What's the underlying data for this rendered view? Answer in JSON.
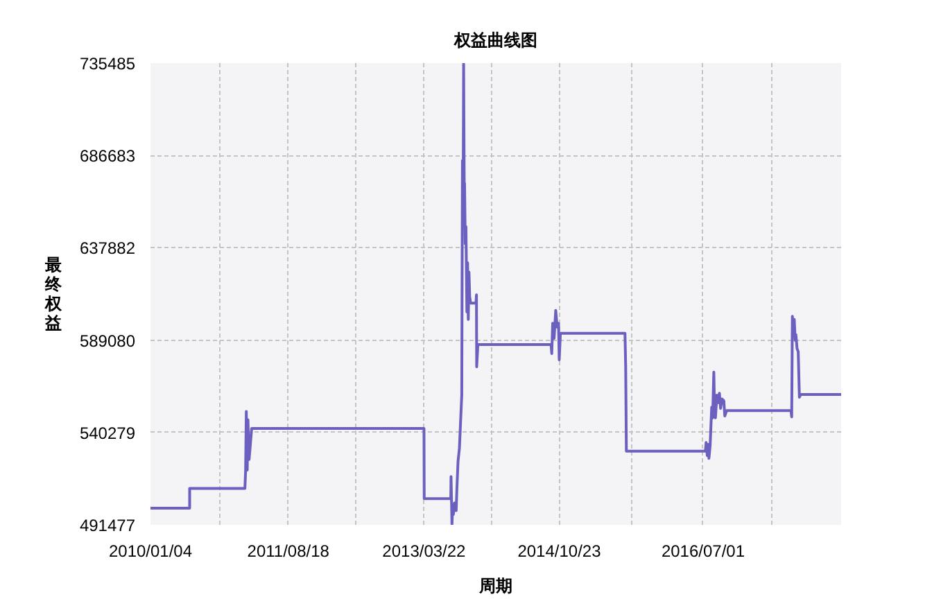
{
  "chart_data": {
    "type": "line",
    "title": "权益曲线图",
    "xlabel": "周期",
    "ylabel": "最终权益",
    "x": [
      "2010-01-04",
      "2010-06-21",
      "2010-06-21",
      "2011-02-13",
      "2011-02-16",
      "2011-02-19",
      "2011-02-23",
      "2011-02-26",
      "2011-03-03",
      "2011-03-14",
      "2013-03-22",
      "2013-03-23",
      "2013-07-15",
      "2013-07-16",
      "2013-07-19",
      "2013-07-20",
      "2013-07-23",
      "2013-07-26",
      "2013-07-31",
      "2013-08-07",
      "2013-08-10",
      "2013-08-15",
      "2013-08-21",
      "2013-08-27",
      "2013-08-31",
      "2013-09-03",
      "2013-09-06",
      "2013-09-08",
      "2013-09-11",
      "2013-09-12",
      "2013-09-15",
      "2013-09-18",
      "2013-09-22",
      "2013-09-25",
      "2013-09-28",
      "2013-10-01",
      "2013-10-04",
      "2013-10-08",
      "2013-10-31",
      "2013-11-02",
      "2013-11-03",
      "2013-11-08",
      "2014-09-18",
      "2014-09-21",
      "2014-09-25",
      "2014-10-01",
      "2014-10-08",
      "2014-10-14",
      "2014-10-20",
      "2014-10-23",
      "2014-10-28",
      "2015-08-01",
      "2015-08-04",
      "2015-08-07",
      "2016-07-11",
      "2016-07-14",
      "2016-07-19",
      "2016-07-23",
      "2016-07-26",
      "2016-07-31",
      "2016-08-07",
      "2016-08-11",
      "2016-08-16",
      "2016-08-19",
      "2016-08-23",
      "2016-08-29",
      "2016-09-03",
      "2016-09-09",
      "2016-09-14",
      "2016-09-20",
      "2016-09-28",
      "2016-10-02",
      "2016-10-10",
      "2017-07-13",
      "2017-07-16",
      "2017-07-19",
      "2017-07-22",
      "2017-07-27",
      "2017-07-31",
      "2017-08-03",
      "2017-08-08",
      "2017-08-13",
      "2017-08-18",
      "2017-08-24",
      "2018-02-13"
    ],
    "series": [
      {
        "color": "#6b60c0",
        "values": [
          500300,
          500300,
          510700,
          510700,
          520000,
          551400,
          520400,
          547000,
          526000,
          542400,
          542400,
          505300,
          505300,
          516900,
          499000,
          491500,
          502000,
          497000,
          503000,
          499000,
          510000,
          525000,
          532000,
          549000,
          560000,
          684000,
          665000,
          735000,
          660000,
          672000,
          640000,
          649000,
          604000,
          630000,
          600000,
          625000,
          612000,
          608600,
          608600,
          613000,
          575000,
          586700,
          586700,
          582000,
          598000,
          590000,
          604800,
          596000,
          598000,
          578700,
          592700,
          592700,
          575000,
          530400,
          530400,
          535000,
          528000,
          534000,
          526600,
          533000,
          553700,
          548000,
          572200,
          553000,
          548000,
          560000,
          556000,
          561000,
          553000,
          558000,
          557000,
          549000,
          551800,
          551800,
          548500,
          601700,
          594000,
          600000,
          589000,
          592000,
          584600,
          583000,
          558900,
          560400,
          560400
        ]
      }
    ],
    "xlim": [
      "2010-01-04",
      "2018-02-13"
    ],
    "xticks": [
      {
        "value": "2010-01-04",
        "label": "2010/01/04"
      },
      {
        "value": "2010-10-27",
        "label": null
      },
      {
        "value": "2011-08-18",
        "label": "2011/08/18"
      },
      {
        "value": "2012-06-04",
        "label": null
      },
      {
        "value": "2013-03-22",
        "label": "2013/03/22"
      },
      {
        "value": "2014-01-06",
        "label": null
      },
      {
        "value": "2014-10-23",
        "label": "2014/10/23"
      },
      {
        "value": "2015-08-28",
        "label": null
      },
      {
        "value": "2016-07-01",
        "label": "2016/07/01"
      },
      {
        "value": "2017-04-23",
        "label": null
      },
      {
        "value": "2018-02-13",
        "label": null
      }
    ],
    "ylim": [
      491477,
      735485
    ],
    "yticks": [
      491477,
      540279,
      589080,
      637882,
      686683,
      735485
    ],
    "grid": true,
    "line_style": "solid"
  }
}
